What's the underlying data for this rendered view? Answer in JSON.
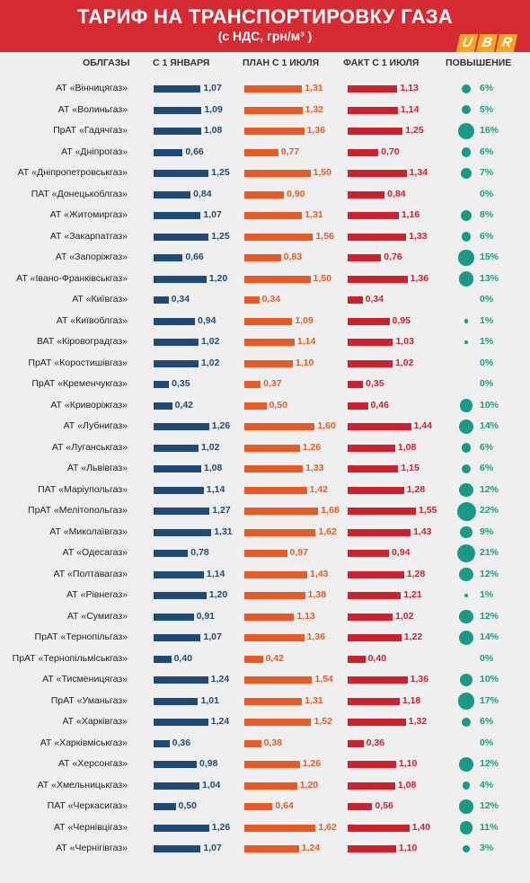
{
  "header": {
    "title": "ТАРИФ НА ТРАНСПОРТИРОВКУ ГАЗА",
    "subtitle": "(с НДС, грн/м³ )",
    "logo_letters": [
      "U",
      "B",
      "R"
    ]
  },
  "colors": {
    "jan": "#1f4a7a",
    "plan": "#ea5a22",
    "fact": "#d0202e",
    "increase": "#1a9a86",
    "header_bg": "#d62b32",
    "logo": "#f4a523"
  },
  "chart_data": {
    "type": "bar",
    "columns": [
      "ОБЛГАЗЫ",
      "С 1 ЯНВАРЯ",
      "ПЛАН С 1 ИЮЛЯ",
      "ФАКТ С 1 ИЮЛЯ",
      "ПОВЫШЕНИЕ"
    ],
    "categories": [
      "АТ «Вінницягаз»",
      "АТ «Волиньгаз»",
      "ПрАТ «Гадячгаз»",
      "АТ «Дніпрогаз»",
      "АТ «Дніпропетровськгаз»",
      "ПАТ «Донецькоблгаз»",
      "АТ «Житомиргаз»",
      "АТ «Закарпатгаз»",
      "АТ «Запоріжгаз»",
      "АТ «Івано-Франківськгаз»",
      "АТ «Київгаз»",
      "АТ «Київоблгаз»",
      "ВАТ «Кіровоградгаз»",
      "ПрАТ «Коростишівгаз»",
      "ПрАТ «Кременчукгаз»",
      "АТ «Криворіжгаз»",
      "АТ «Лубнигаз»",
      "АТ «Луганськгаз»",
      "АТ «Львівгаз»",
      "ПАТ «Маріупольгаз»",
      "ПрАТ «Мелітопольгаз»",
      "АТ «Миколаївгаз»",
      "АТ «Одесагаз»",
      "АТ «Полтавагаз»",
      "АТ «Рівнегаз»",
      "АТ «Сумигаз»",
      "ПрАТ «Тернопільгаз»",
      "ПрАТ «Тернопільміськгаз»",
      "АТ «Тисменицягаз»",
      "ПрАТ «Уманьгаз»",
      "АТ «Харківгаз»",
      "АТ «Харківміськгаз»",
      "АТ «Херсонгаз»",
      "АТ «Хмельницькгаз»",
      "ПАТ «Черкасигаз»",
      "АТ «Чернівцігаз»",
      "АТ «Чернігівгаз»"
    ],
    "series": [
      {
        "name": "С 1 ЯНВАРЯ",
        "values": [
          1.07,
          1.09,
          1.08,
          0.66,
          1.25,
          0.84,
          1.07,
          1.25,
          0.66,
          1.2,
          0.34,
          0.94,
          1.02,
          1.02,
          0.35,
          0.42,
          1.26,
          1.02,
          1.08,
          1.14,
          1.27,
          1.31,
          0.78,
          1.14,
          1.2,
          0.91,
          1.07,
          0.4,
          1.24,
          1.01,
          1.24,
          0.36,
          0.98,
          1.04,
          0.5,
          1.26,
          1.07
        ]
      },
      {
        "name": "ПЛАН С 1 ИЮЛЯ",
        "values": [
          1.31,
          1.32,
          1.36,
          0.77,
          1.5,
          0.9,
          1.31,
          1.56,
          0.83,
          1.5,
          0.34,
          1.09,
          1.14,
          1.1,
          0.37,
          0.5,
          1.6,
          1.26,
          1.33,
          1.42,
          1.68,
          1.62,
          0.97,
          1.43,
          1.38,
          1.13,
          1.36,
          0.42,
          1.54,
          1.31,
          1.52,
          0.38,
          1.26,
          1.2,
          0.64,
          1.62,
          1.24
        ]
      },
      {
        "name": "ФАКТ С 1 ИЮЛЯ",
        "values": [
          1.13,
          1.14,
          1.25,
          0.7,
          1.34,
          0.84,
          1.16,
          1.33,
          0.76,
          1.36,
          0.34,
          0.95,
          1.03,
          1.02,
          0.35,
          0.46,
          1.44,
          1.08,
          1.15,
          1.28,
          1.55,
          1.43,
          0.94,
          1.28,
          1.21,
          1.02,
          1.22,
          0.4,
          1.36,
          1.18,
          1.32,
          0.36,
          1.1,
          1.08,
          0.56,
          1.4,
          1.1
        ]
      },
      {
        "name": "ПОВЫШЕНИЕ",
        "values": [
          6,
          5,
          16,
          6,
          7,
          0,
          8,
          6,
          15,
          13,
          0,
          1,
          1,
          0,
          0,
          10,
          14,
          6,
          6,
          12,
          22,
          9,
          21,
          12,
          1,
          12,
          14,
          0,
          10,
          17,
          6,
          0,
          12,
          4,
          12,
          11,
          3
        ]
      }
    ],
    "labels": {
      "jan": [
        "1,07",
        "1,09",
        "1,08",
        "0,66",
        "1,25",
        "0,84",
        "1,07",
        "1,25",
        "0,66",
        "1,20",
        "0,34",
        "0,94",
        "1,02",
        "1,02",
        "0,35",
        "0,42",
        "1,26",
        "1,02",
        "1,08",
        "1,14",
        "1,27",
        "1,31",
        "0,78",
        "1,14",
        "1,20",
        "0,91",
        "1,07",
        "0,40",
        "1,24",
        "1,01",
        "1,24",
        "0,36",
        "0,98",
        "1,04",
        "0,50",
        "1,26",
        "1,07"
      ],
      "plan": [
        "1,31",
        "1,32",
        "1,36",
        "0,77",
        "1,50",
        "0,90",
        "1,31",
        "1,56",
        "0,83",
        "1,50",
        "0,34",
        "1,09",
        "1,14",
        "1,10",
        "0,37",
        "0,50",
        "1,60",
        "1,26",
        "1,33",
        "1,42",
        "1,68",
        "1,62",
        "0,97",
        "1,43",
        "1,38",
        "1,13",
        "1,36",
        "0,42",
        "1,54",
        "1,31",
        "1,52",
        "0,38",
        "1,26",
        "1,20",
        "0,64",
        "1,62",
        "1,24"
      ],
      "fact": [
        "1,13",
        "1,14",
        "1,25",
        "0,70",
        "1,34",
        "0,84",
        "1,16",
        "1,33",
        "0,76",
        "1,36",
        "0,34",
        "0,95",
        "1,03",
        "1,02",
        "0,35",
        "0,46",
        "1,44",
        "1,08",
        "1,15",
        "1,28",
        "1,55",
        "1,43",
        "0,94",
        "1,28",
        "1,21",
        "1,02",
        "1,22",
        "0,40",
        "1,36",
        "1,18",
        "1,32",
        "0,36",
        "1,10",
        "1,08",
        "0,56",
        "1,40",
        "1,10"
      ],
      "increase": [
        "6%",
        "5%",
        "16%",
        "6%",
        "7%",
        "0%",
        "8%",
        "6%",
        "15%",
        "13%",
        "0%",
        "1%",
        "1%",
        "0%",
        "0%",
        "10%",
        "14%",
        "6%",
        "6%",
        "12%",
        "22%",
        "9%",
        "21%",
        "12%",
        "1%",
        "12%",
        "14%",
        "0%",
        "10%",
        "17%",
        "6%",
        "0%",
        "12%",
        "4%",
        "12%",
        "11%",
        "3%"
      ]
    }
  }
}
